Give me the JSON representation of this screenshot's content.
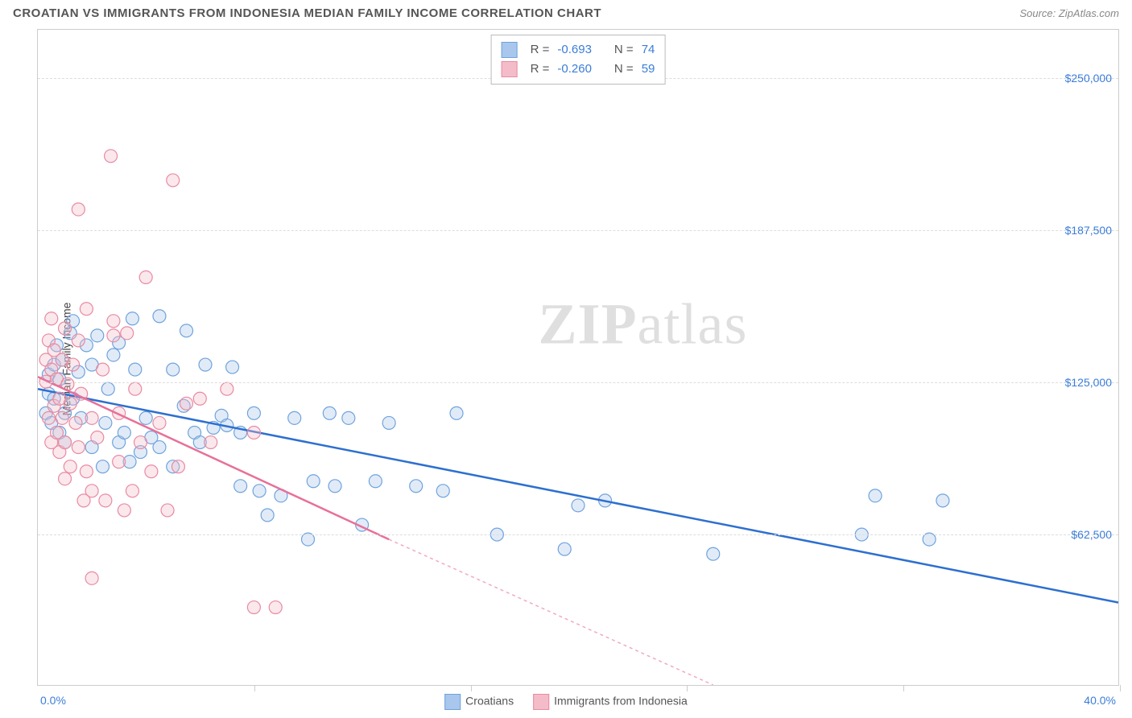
{
  "header": {
    "title": "CROATIAN VS IMMIGRANTS FROM INDONESIA MEDIAN FAMILY INCOME CORRELATION CHART",
    "source_prefix": "Source: ",
    "source_name": "ZipAtlas.com"
  },
  "watermark": {
    "part1": "ZIP",
    "part2": "atlas"
  },
  "chart": {
    "type": "scatter",
    "y_axis_label": "Median Family Income",
    "xlim": [
      0,
      40
    ],
    "ylim": [
      0,
      270000
    ],
    "x_min_label": "0.0%",
    "x_max_label": "40.0%",
    "y_ticks": [
      {
        "v": 62500,
        "label": "$62,500"
      },
      {
        "v": 125000,
        "label": "$125,000"
      },
      {
        "v": 187500,
        "label": "$187,500"
      },
      {
        "v": 250000,
        "label": "$250,000"
      }
    ],
    "x_tick_positions": [
      0,
      8,
      16,
      24,
      32,
      40
    ],
    "grid_color": "#dddddd",
    "background_color": "#ffffff",
    "marker_radius": 8,
    "series": [
      {
        "key": "croatians",
        "label": "Croatians",
        "fill": "#a9c7ec",
        "stroke": "#6fa3dd",
        "line_color": "#2d6fd0",
        "line_dash": "none",
        "r_label": "R =",
        "r_value": "-0.693",
        "n_label": "N =",
        "n_value": "74",
        "regression": {
          "x1": 0,
          "y1": 122000,
          "x2": 40,
          "y2": 34000
        },
        "points": [
          [
            0.3,
            112000
          ],
          [
            0.4,
            120000
          ],
          [
            0.4,
            128000
          ],
          [
            0.5,
            108000
          ],
          [
            0.6,
            132000
          ],
          [
            0.6,
            118000
          ],
          [
            0.7,
            140000
          ],
          [
            0.8,
            104000
          ],
          [
            0.8,
            126000
          ],
          [
            0.9,
            134000
          ],
          [
            1.0,
            112000
          ],
          [
            1.0,
            100000
          ],
          [
            1.2,
            145000
          ],
          [
            1.3,
            150000
          ],
          [
            1.3,
            118000
          ],
          [
            1.5,
            129000
          ],
          [
            1.6,
            110000
          ],
          [
            1.8,
            140000
          ],
          [
            2.0,
            132000
          ],
          [
            2.0,
            98000
          ],
          [
            2.2,
            144000
          ],
          [
            2.4,
            90000
          ],
          [
            2.5,
            108000
          ],
          [
            2.6,
            122000
          ],
          [
            2.8,
            136000
          ],
          [
            3.0,
            100000
          ],
          [
            3.0,
            141000
          ],
          [
            3.2,
            104000
          ],
          [
            3.4,
            92000
          ],
          [
            3.5,
            151000
          ],
          [
            3.6,
            130000
          ],
          [
            3.8,
            96000
          ],
          [
            4.0,
            110000
          ],
          [
            4.2,
            102000
          ],
          [
            4.5,
            152000
          ],
          [
            4.5,
            98000
          ],
          [
            5.0,
            130000
          ],
          [
            5.0,
            90000
          ],
          [
            5.4,
            115000
          ],
          [
            5.5,
            146000
          ],
          [
            5.8,
            104000
          ],
          [
            6.0,
            100000
          ],
          [
            6.2,
            132000
          ],
          [
            6.5,
            106000
          ],
          [
            6.8,
            111000
          ],
          [
            7.0,
            107000
          ],
          [
            7.2,
            131000
          ],
          [
            7.5,
            104000
          ],
          [
            7.5,
            82000
          ],
          [
            8.0,
            112000
          ],
          [
            8.2,
            80000
          ],
          [
            8.5,
            70000
          ],
          [
            9.0,
            78000
          ],
          [
            9.5,
            110000
          ],
          [
            10.0,
            60000
          ],
          [
            10.2,
            84000
          ],
          [
            10.8,
            112000
          ],
          [
            11.0,
            82000
          ],
          [
            11.5,
            110000
          ],
          [
            12.0,
            66000
          ],
          [
            12.5,
            84000
          ],
          [
            13.0,
            108000
          ],
          [
            14.0,
            82000
          ],
          [
            15.0,
            80000
          ],
          [
            15.5,
            112000
          ],
          [
            17.0,
            62000
          ],
          [
            19.5,
            56000
          ],
          [
            20.0,
            74000
          ],
          [
            21.0,
            76000
          ],
          [
            25.0,
            54000
          ],
          [
            30.5,
            62000
          ],
          [
            31.0,
            78000
          ],
          [
            33.0,
            60000
          ],
          [
            33.5,
            76000
          ]
        ]
      },
      {
        "key": "indonesia",
        "label": "Immigrants from Indonesia",
        "fill": "#f4bcc9",
        "stroke": "#e98aa2",
        "line_color": "#e87099",
        "line_dash": "4,4",
        "r_label": "R =",
        "r_value": "-0.260",
        "n_label": "N =",
        "n_value": "59",
        "regression": {
          "x1": 0,
          "y1": 127000,
          "x2": 13,
          "y2": 60000
        },
        "regression_ext": {
          "x1": 13,
          "y1": 60000,
          "x2": 25,
          "y2": 0
        },
        "points": [
          [
            0.3,
            125000
          ],
          [
            0.3,
            134000
          ],
          [
            0.4,
            110000
          ],
          [
            0.4,
            142000
          ],
          [
            0.5,
            100000
          ],
          [
            0.5,
            130000
          ],
          [
            0.5,
            151000
          ],
          [
            0.6,
            115000
          ],
          [
            0.6,
            138000
          ],
          [
            0.7,
            104000
          ],
          [
            0.7,
            126000
          ],
          [
            0.8,
            118000
          ],
          [
            0.8,
            96000
          ],
          [
            0.9,
            134000
          ],
          [
            0.9,
            110000
          ],
          [
            1.0,
            100000
          ],
          [
            1.0,
            147000
          ],
          [
            1.1,
            124000
          ],
          [
            1.2,
            116000
          ],
          [
            1.2,
            90000
          ],
          [
            1.3,
            132000
          ],
          [
            1.4,
            108000
          ],
          [
            1.5,
            142000
          ],
          [
            1.5,
            196000
          ],
          [
            1.5,
            98000
          ],
          [
            1.6,
            120000
          ],
          [
            1.8,
            155000
          ],
          [
            1.8,
            88000
          ],
          [
            2.0,
            110000
          ],
          [
            2.0,
            44000
          ],
          [
            2.0,
            80000
          ],
          [
            2.2,
            102000
          ],
          [
            2.4,
            130000
          ],
          [
            2.5,
            76000
          ],
          [
            2.7,
            218000
          ],
          [
            2.8,
            150000
          ],
          [
            2.8,
            144000
          ],
          [
            3.0,
            92000
          ],
          [
            3.0,
            112000
          ],
          [
            3.3,
            145000
          ],
          [
            3.5,
            80000
          ],
          [
            3.6,
            122000
          ],
          [
            3.8,
            100000
          ],
          [
            4.0,
            168000
          ],
          [
            4.2,
            88000
          ],
          [
            4.5,
            108000
          ],
          [
            5.0,
            208000
          ],
          [
            5.2,
            90000
          ],
          [
            5.5,
            116000
          ],
          [
            6.0,
            118000
          ],
          [
            6.4,
            100000
          ],
          [
            7.0,
            122000
          ],
          [
            8.0,
            104000
          ],
          [
            8.0,
            32000
          ],
          [
            8.8,
            32000
          ],
          [
            3.2,
            72000
          ],
          [
            1.0,
            85000
          ],
          [
            1.7,
            76000
          ],
          [
            4.8,
            72000
          ]
        ]
      }
    ]
  }
}
